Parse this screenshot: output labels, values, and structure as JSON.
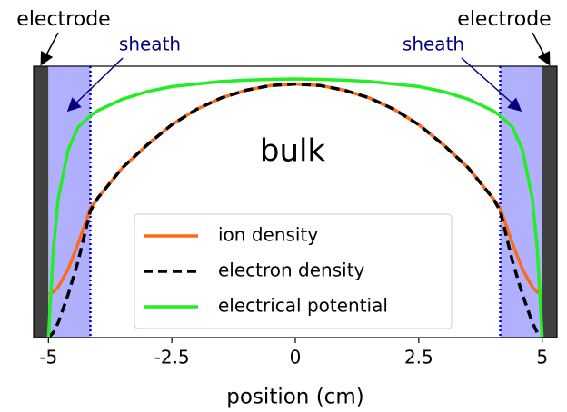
{
  "chart_data": {
    "type": "line",
    "xlabel": "position (cm)",
    "x": [
      -5,
      -4.9,
      -4.8,
      -4.6,
      -4.4,
      -4.15,
      -4,
      -3.5,
      -3,
      -2.5,
      -2,
      -1.5,
      -1,
      -0.5,
      0,
      0.5,
      1,
      1.5,
      2,
      2.5,
      3,
      3.5,
      4,
      4.15,
      4.4,
      4.6,
      4.8,
      4.9,
      5
    ],
    "series": [
      {
        "name": "ion density",
        "color": "#ff6a1a",
        "dash": false,
        "values": [
          0.17,
          0.18,
          0.2,
          0.27,
          0.37,
          0.51,
          0.55,
          0.67,
          0.76,
          0.84,
          0.9,
          0.945,
          0.975,
          0.994,
          1.0,
          0.994,
          0.975,
          0.945,
          0.9,
          0.84,
          0.76,
          0.67,
          0.55,
          0.51,
          0.37,
          0.27,
          0.2,
          0.18,
          0.17
        ]
      },
      {
        "name": "electron density",
        "color": "#000000",
        "dash": true,
        "values": [
          0,
          0.02,
          0.06,
          0.17,
          0.3,
          0.5,
          0.55,
          0.67,
          0.76,
          0.84,
          0.9,
          0.945,
          0.975,
          0.994,
          1.0,
          0.994,
          0.975,
          0.945,
          0.9,
          0.84,
          0.76,
          0.67,
          0.55,
          0.5,
          0.3,
          0.17,
          0.06,
          0.02,
          0
        ]
      },
      {
        "name": "electrical potential",
        "color": "#22ee22",
        "dash": false,
        "values": [
          0,
          0.35,
          0.55,
          0.74,
          0.83,
          0.875,
          0.895,
          0.94,
          0.97,
          0.99,
          1.0,
          1.01,
          1.015,
          1.018,
          1.02,
          1.018,
          1.015,
          1.01,
          1.0,
          0.99,
          0.97,
          0.94,
          0.895,
          0.875,
          0.83,
          0.74,
          0.55,
          0.35,
          0
        ]
      }
    ],
    "xlim": [
      -5.3,
      5.3
    ],
    "ylim": [
      0,
      1.07
    ],
    "xticks": [
      -5,
      -2.5,
      0,
      2.5,
      5
    ],
    "electrodes": [
      -5,
      5
    ],
    "sheath_boundary": [
      -4.15,
      4.15
    ],
    "annotations": [
      "electrode",
      "electrode",
      "sheath",
      "sheath",
      "bulk"
    ]
  }
}
